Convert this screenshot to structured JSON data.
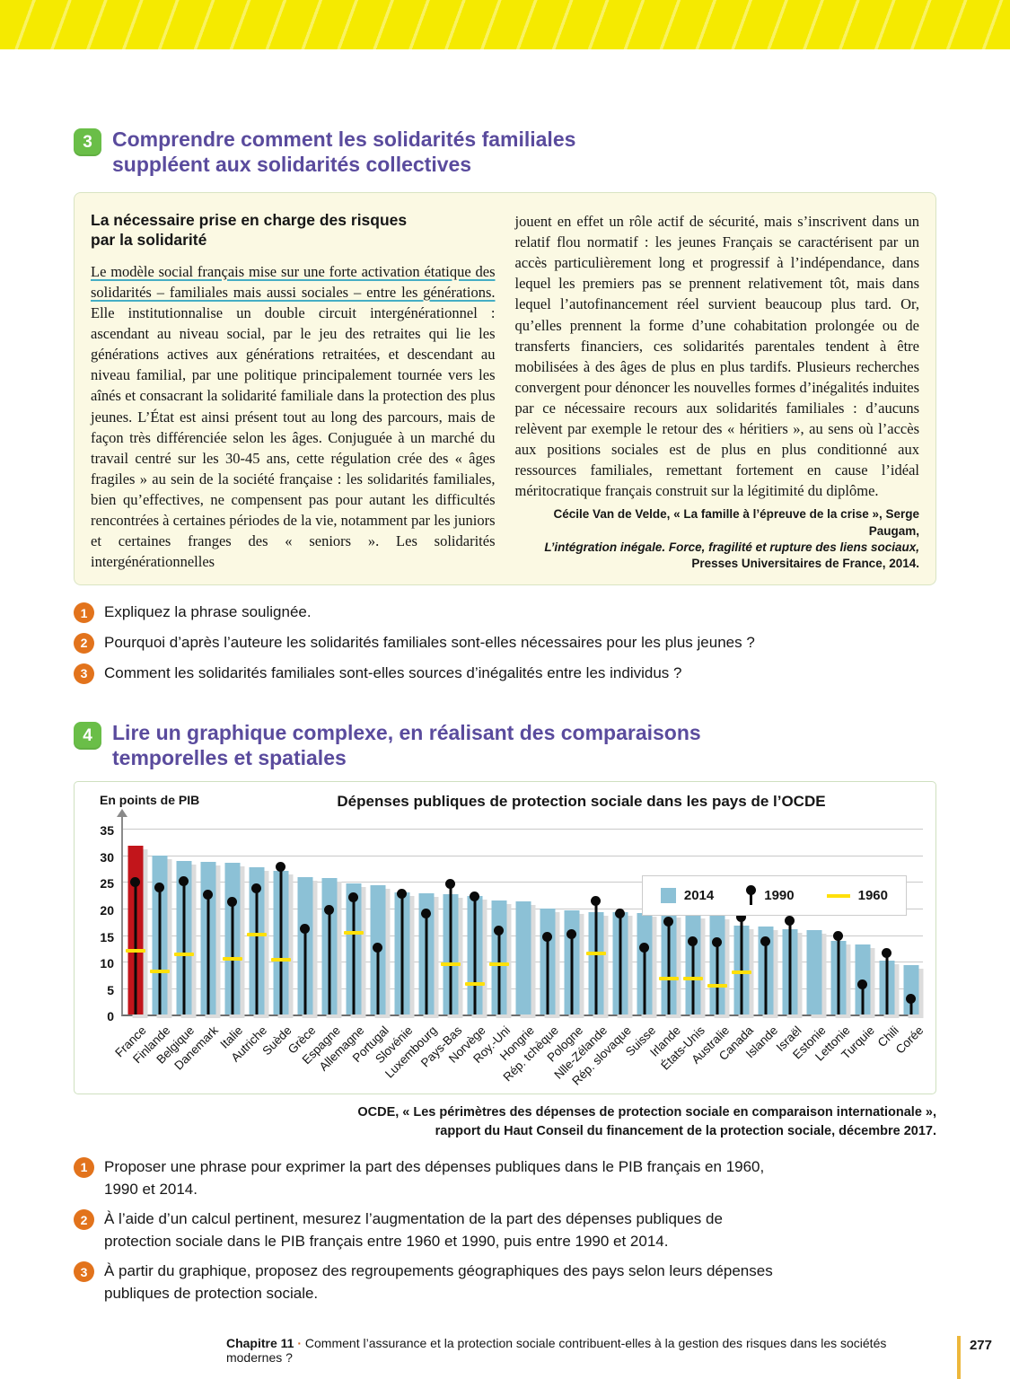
{
  "section3": {
    "number": "3",
    "title_line1": "Comprendre comment les solidarités familiales",
    "title_line2": "suppléent aux solidarités collectives",
    "doc": {
      "title_line1": "La nécessaire prise en charge des risques",
      "title_line2": "par la solidarité",
      "underlined": "Le modèle social français mise sur une forte activation étatique des solidarités – familiales mais aussi sociales – entre les générations.",
      "left_rest": " Elle institutionnalise un double circuit intergénérationnel : ascendant au niveau social, par le jeu des retraites qui lie les générations actives aux générations retraitées, et descendant au niveau familial, par une politique principalement tournée vers les aînés et consacrant la solidarité familiale dans la protection des plus jeunes. L’État est ainsi présent tout au long des parcours, mais de façon très différenciée selon les âges. Conjuguée à un marché du travail centré sur les 30-45 ans, cette régulation crée des « âges fragiles » au sein de la société française : les solidarités familiales, bien qu’effectives, ne compensent pas pour autant les difficultés rencontrées à certaines périodes de la vie, notamment par les juniors et certaines franges des « seniors ». Les solidarités intergénérationnelles",
      "right_text": "jouent en effet un rôle actif de sécurité, mais s’inscrivent dans un relatif flou normatif : les jeunes Français se caractérisent par un accès particulièrement long et progressif à l’indépendance, dans lequel les premiers pas se prennent relativement tôt, mais dans lequel l’autofinancement réel survient beaucoup plus tard. Or, qu’elles prennent la forme d’une cohabitation prolongée ou de transferts financiers, ces solidarités parentales tendent à être mobilisées à des âges de plus en plus tardifs. Plusieurs recherches convergent pour dénoncer les nouvelles formes d’inégalités induites par ce nécessaire recours aux solidarités familiales : d’aucuns relèvent par exemple le retour des « héritiers », au sens où l’accès aux positions sociales est de plus en plus conditionné aux ressources familiales, remettant fortement en cause l’idéal méritocratique français construit sur la légitimité du diplôme.",
      "citation_line1": "Cécile Van de Velde, « La famille à l’épreuve de la crise », Serge Paugam,",
      "citation_line2": "L’intégration inégale. Force, fragilité et rupture des liens sociaux,",
      "citation_line3": "Presses Universitaires de France, 2014."
    },
    "questions": [
      {
        "num": "1",
        "text": "Expliquez la phrase soulignée."
      },
      {
        "num": "2",
        "text": "Pourquoi d’après l’auteure les solidarités familiales sont-elles nécessaires pour les plus jeunes ?"
      },
      {
        "num": "3",
        "text": "Comment les solidarités familiales sont-elles sources d’inégalités entre les individus ?"
      }
    ]
  },
  "section4": {
    "number": "4",
    "title_line1": "Lire un graphique complexe, en réalisant des comparaisons",
    "title_line2": "temporelles et spatiales",
    "source_line1": "OCDE,  « Les périmètres des dépenses de protection sociale en comparaison internationale »,",
    "source_line2": "rapport du Haut Conseil du financement de la protection sociale, décembre 2017.",
    "questions": [
      {
        "num": "1",
        "text": "Proposer une phrase pour exprimer la part des dépenses publiques dans le PIB français en 1960, 1990 et 2014."
      },
      {
        "num": "2",
        "text": "À l’aide d’un calcul pertinent, mesurez l’augmentation de la part des dépenses publiques de protection sociale dans le PIB français entre 1960 et 1990, puis entre 1990 et 2014."
      },
      {
        "num": "3",
        "text": "À partir du graphique, proposez des regroupements géographiques des pays selon leurs dépenses publiques de protection sociale."
      }
    ]
  },
  "chart_data": {
    "type": "bar",
    "title": "Dépenses publiques de protection sociale dans les pays de l’OCDE",
    "ylabel": "En points de PIB",
    "ylim": [
      0,
      35
    ],
    "yticks": [
      0,
      5,
      10,
      15,
      20,
      25,
      30,
      35
    ],
    "grid": true,
    "legend_position": "top-right",
    "legend": [
      {
        "label": "2014",
        "marker": "bar"
      },
      {
        "label": "1990",
        "marker": "pin"
      },
      {
        "label": "1960",
        "marker": "dash"
      }
    ],
    "colors": {
      "bar_2014": "#8cc1d6",
      "bar_highlight": "#c2151b",
      "pin_1990": "#0a0a0a",
      "dash_1960": "#ffe00a"
    },
    "highlight_category": "France",
    "categories": [
      "France",
      "Finlande",
      "Belgique",
      "Danemark",
      "Italie",
      "Autriche",
      "Suède",
      "Grèce",
      "Espagne",
      "Allemagne",
      "Portugal",
      "Slovénie",
      "Luxembourg",
      "Pays-Bas",
      "Norvège",
      "Roy.-Uni",
      "Hongrie",
      "Rép. tchèque",
      "Pologne",
      "Nlle-Zélande",
      "Rép. slovaque",
      "Suisse",
      "Irlande",
      "États-Unis",
      "Australie",
      "Canada",
      "Islande",
      "Israël",
      "Estonie",
      "Lettonie",
      "Turquie",
      "Chili",
      "Corée"
    ],
    "series": [
      {
        "name": "2014",
        "values": [
          31.9,
          30.0,
          29.0,
          28.8,
          28.7,
          27.7,
          27.1,
          25.9,
          25.8,
          24.7,
          24.4,
          23.1,
          22.8,
          22.7,
          22.4,
          21.6,
          21.3,
          20.0,
          19.6,
          19.4,
          19.3,
          19.2,
          19.0,
          18.8,
          18.6,
          16.8,
          16.6,
          16.2,
          16.0,
          14.0,
          13.3,
          10.2,
          9.4
        ]
      },
      {
        "name": "1990",
        "values": [
          24.4,
          23.4,
          24.5,
          22.0,
          20.7,
          23.3,
          27.2,
          15.6,
          19.1,
          21.5,
          12.1,
          22.2,
          18.4,
          24.1,
          21.7,
          15.3,
          null,
          14.1,
          14.6,
          20.9,
          18.4,
          12.0,
          17.0,
          13.2,
          13.1,
          17.8,
          13.3,
          17.1,
          null,
          14.3,
          5.2,
          11.1,
          2.4
        ]
      },
      {
        "name": "1960",
        "values": [
          12.0,
          8.1,
          11.3,
          null,
          10.6,
          15.1,
          10.3,
          null,
          null,
          15.4,
          null,
          null,
          null,
          9.5,
          5.8,
          9.5,
          null,
          null,
          null,
          11.5,
          null,
          null,
          6.8,
          6.8,
          5.5,
          8.0,
          null,
          null,
          null,
          null,
          null,
          null,
          null
        ]
      }
    ]
  },
  "footer": {
    "chapter": "Chapitre 11",
    "separator": "·",
    "title": "Comment l’assurance et la protection sociale contribuent-elles à la gestion des risques dans les sociétés modernes ?",
    "page_number": "277"
  }
}
